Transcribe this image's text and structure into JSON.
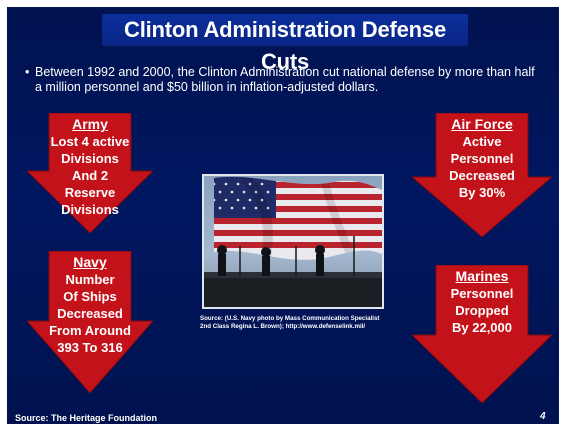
{
  "slide": {
    "title": "Clinton Administration Defense Cuts",
    "bullet_marker": "•",
    "bullet_text": "Between 1992 and 2000, the Clinton Administration cut national defense by more than half a million personnel and $50 billion in inflation-adjusted dollars.",
    "colors": {
      "background": "#001660",
      "title_bar": "#0b2f9c",
      "arrow_fill": "#c4121a",
      "text": "#ffffff"
    }
  },
  "arrows": {
    "army": {
      "heading": "Army",
      "body": "Lost 4 active\nDivisions\nAnd 2\nReserve\nDivisions"
    },
    "navy": {
      "heading": "Navy",
      "body": "Number\nOf Ships\nDecreased\nFrom Around\n393 To 316"
    },
    "air_force": {
      "heading": "Air Force",
      "body": "Active\nPersonnel\nDecreased\nBy 30%"
    },
    "marines": {
      "heading": "Marines",
      "body": "Personnel\nDropped\nBy 22,000"
    }
  },
  "photo": {
    "caption": "Source: (U.S. Navy photo by Mass Communication Specialist 2nd Class Regina L. Brown); http://www.defenselink.mil/"
  },
  "footer": {
    "source": "Source: The Heritage Foundation",
    "page_number": "4"
  }
}
